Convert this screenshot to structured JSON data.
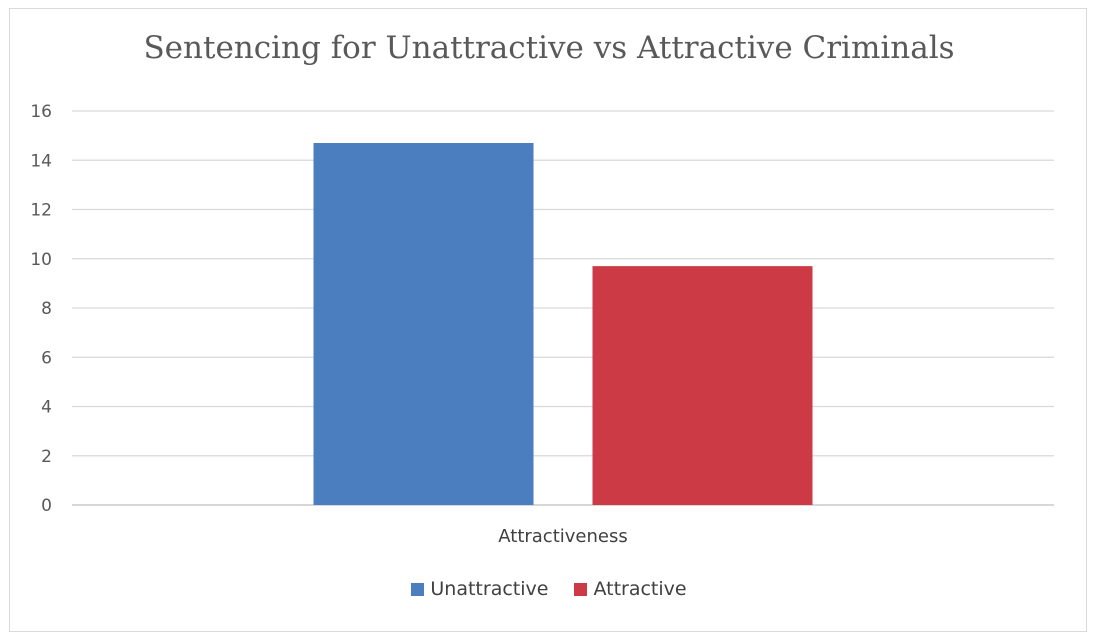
{
  "chart_data": {
    "type": "bar",
    "title": "Sentencing for Unattractive vs Attractive Criminals",
    "categories": [
      "Attractiveness"
    ],
    "series": [
      {
        "name": "Unattractive",
        "values": [
          14.7
        ],
        "color": "#4a7ebf"
      },
      {
        "name": "Attractive",
        "values": [
          9.7
        ],
        "color": "#cc3a45"
      }
    ],
    "ylim": [
      0,
      16
    ],
    "yticks": [
      0,
      2,
      4,
      6,
      8,
      10,
      12,
      14,
      16
    ],
    "grid": true,
    "legend_position": "bottom",
    "xlabel": "",
    "ylabel": ""
  }
}
